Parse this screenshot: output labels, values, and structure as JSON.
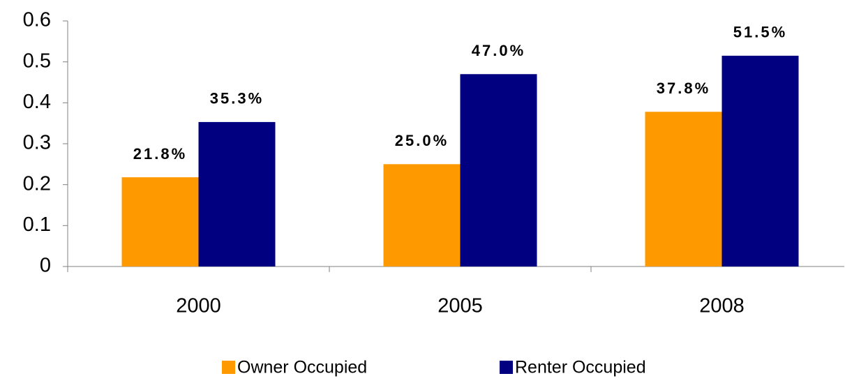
{
  "chart_data": {
    "type": "bar",
    "categories": [
      "2000",
      "2005",
      "2008"
    ],
    "series": [
      {
        "name": "Owner Occupied",
        "color": "#ff9900",
        "values": [
          0.218,
          0.25,
          0.378
        ],
        "value_labels": [
          "21.8%",
          "25.0%",
          "37.8%"
        ]
      },
      {
        "name": "Renter Occupied",
        "color": "#000080",
        "values": [
          0.353,
          0.47,
          0.515
        ],
        "value_labels": [
          "35.3%",
          "47.0%",
          "51.5%"
        ]
      }
    ],
    "ylim": [
      0,
      0.6
    ],
    "yticks": [
      0,
      0.1,
      0.2,
      0.3,
      0.4,
      0.5,
      0.6
    ],
    "grid": false,
    "legend": "bottom"
  }
}
